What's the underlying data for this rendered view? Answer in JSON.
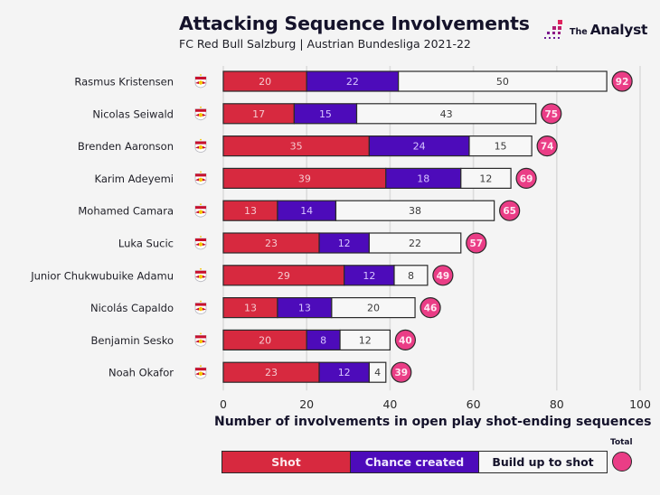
{
  "header": {
    "title": "Attacking Sequence Involvements",
    "subtitle": "FC Red Bull Salzburg | Austrian Bundesliga 2021-22",
    "brand_prefix": "The",
    "brand_name": "Analyst"
  },
  "colors": {
    "shot": "#d7293f",
    "chance_created": "#4d0bba",
    "build_up": "#f7f7f7",
    "total": "#ea3d86",
    "background": "#f4f4f4",
    "grid": "#dcdcdc"
  },
  "legend": {
    "shot": "Shot",
    "chance_created": "Chance created",
    "build_up": "Build up to shot",
    "total": "Total"
  },
  "chart_data": {
    "type": "bar",
    "orientation": "horizontal",
    "stacked": true,
    "title": "Attacking Sequence Involvements",
    "subtitle": "FC Red Bull Salzburg | Austrian Bundesliga 2021-22",
    "xlabel": "Number of involvements in open play shot-ending sequences",
    "ylabel": "",
    "xlim": [
      0,
      100
    ],
    "xticks": [
      0,
      20,
      40,
      60,
      80,
      100
    ],
    "grid": true,
    "legend_position": "bottom",
    "categories": [
      "Rasmus Kristensen",
      "Nicolas Seiwald",
      "Brenden Aaronson",
      "Karim Adeyemi",
      "Mohamed Camara",
      "Luka Sucic",
      "Junior Chukwubuike Adamu",
      "Nicolás Capaldo",
      "Benjamin Sesko",
      "Noah Okafor"
    ],
    "series": [
      {
        "name": "Shot",
        "values": [
          20,
          17,
          35,
          39,
          13,
          23,
          29,
          13,
          20,
          23
        ]
      },
      {
        "name": "Chance created",
        "values": [
          22,
          15,
          24,
          18,
          14,
          12,
          12,
          13,
          8,
          12
        ]
      },
      {
        "name": "Build up to shot",
        "values": [
          50,
          43,
          15,
          12,
          38,
          22,
          8,
          20,
          12,
          4
        ]
      }
    ],
    "totals": [
      92,
      75,
      74,
      69,
      65,
      57,
      49,
      46,
      40,
      39
    ]
  }
}
